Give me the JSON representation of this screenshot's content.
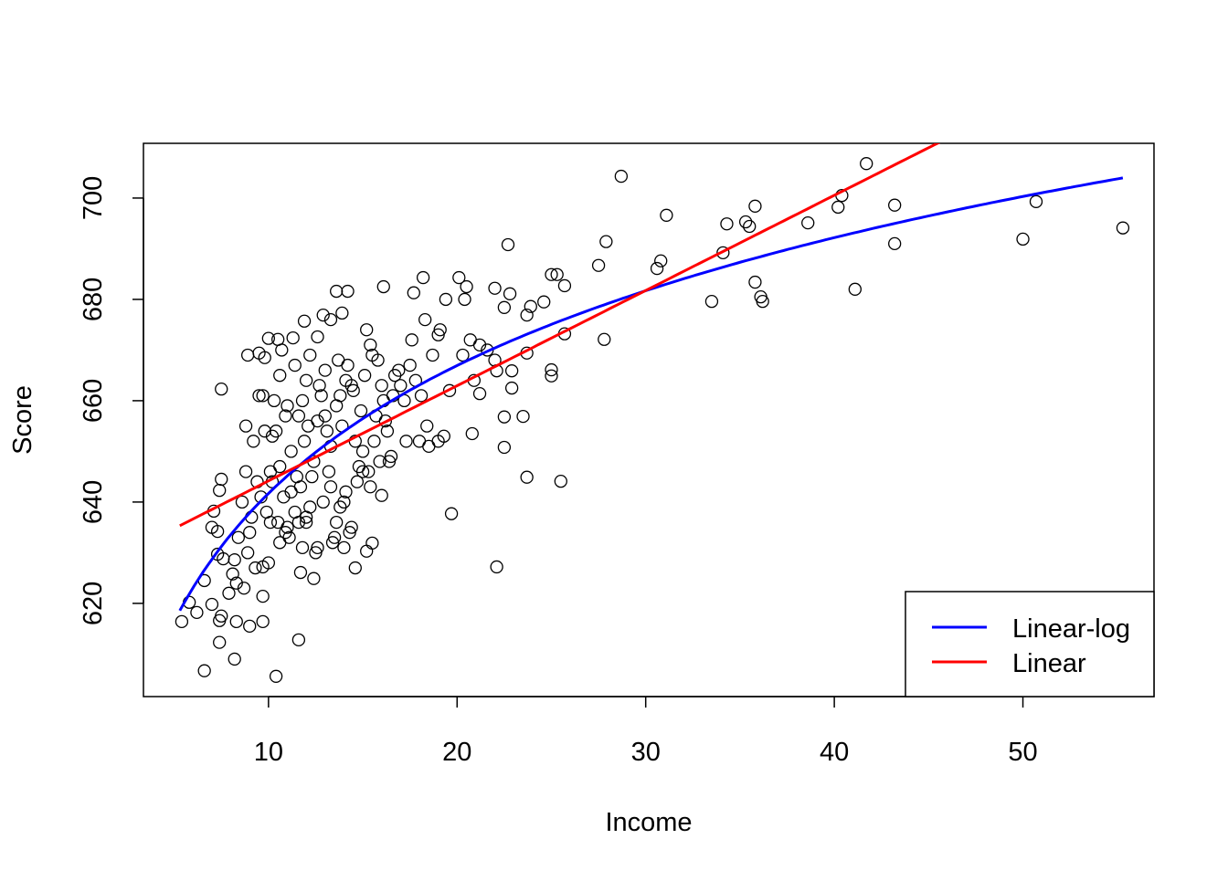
{
  "chart_data": {
    "type": "scatter",
    "title": "",
    "xlabel": "Income",
    "ylabel": "Score",
    "xlim": [
      3.37,
      56.95
    ],
    "ylim": [
      601.6,
      710.8
    ],
    "x_ticks": [
      10,
      20,
      30,
      40,
      50
    ],
    "y_ticks": [
      620,
      640,
      660,
      680,
      700
    ],
    "grid": false,
    "legend": {
      "placement": "bottom-right",
      "entries": [
        {
          "label": "Linear-log",
          "color": "#0000ff"
        },
        {
          "label": "Linear",
          "color": "#ff0000"
        }
      ]
    },
    "lines": [
      {
        "name": "Linear-log",
        "color": "#0000ff",
        "model": "log",
        "intercept": 557.83,
        "slope": 36.42,
        "x_range": [
          5.3,
          55.3
        ]
      },
      {
        "name": "Linear",
        "color": "#ff0000",
        "model": "linear",
        "intercept": 625.38,
        "slope": 1.879,
        "x_range": [
          5.3,
          55.3
        ]
      }
    ],
    "points": [
      [
        28.7,
        704.3
      ],
      [
        41.7,
        706.8
      ],
      [
        40.4,
        700.5
      ],
      [
        40.2,
        698.2
      ],
      [
        43.2,
        698.6
      ],
      [
        43.2,
        691.0
      ],
      [
        50.7,
        699.3
      ],
      [
        50.0,
        691.9
      ],
      [
        55.3,
        694.1
      ],
      [
        41.1,
        682.0
      ],
      [
        38.6,
        695.1
      ],
      [
        35.8,
        698.4
      ],
      [
        35.3,
        695.3
      ],
      [
        35.5,
        694.4
      ],
      [
        34.3,
        694.9
      ],
      [
        34.1,
        689.2
      ],
      [
        35.8,
        683.4
      ],
      [
        36.1,
        680.5
      ],
      [
        36.2,
        679.6
      ],
      [
        33.5,
        679.6
      ],
      [
        31.1,
        696.6
      ],
      [
        30.8,
        687.6
      ],
      [
        30.6,
        686.1
      ],
      [
        27.9,
        691.4
      ],
      [
        27.5,
        686.7
      ],
      [
        27.8,
        672.1
      ],
      [
        25.7,
        682.7
      ],
      [
        25.3,
        684.9
      ],
      [
        25.0,
        684.9
      ],
      [
        24.6,
        679.5
      ],
      [
        23.9,
        678.6
      ],
      [
        23.7,
        676.9
      ],
      [
        22.7,
        690.8
      ],
      [
        22.8,
        681.1
      ],
      [
        22.0,
        682.2
      ],
      [
        22.5,
        678.4
      ],
      [
        25.7,
        673.2
      ],
      [
        23.7,
        669.4
      ],
      [
        25.0,
        666.1
      ],
      [
        25.0,
        664.9
      ],
      [
        22.9,
        665.9
      ],
      [
        22.1,
        665.9
      ],
      [
        22.9,
        662.5
      ],
      [
        23.5,
        656.9
      ],
      [
        22.5,
        656.8
      ],
      [
        22.5,
        650.8
      ],
      [
        23.7,
        644.9
      ],
      [
        25.5,
        644.1
      ],
      [
        22.1,
        627.2
      ],
      [
        19.7,
        637.7
      ],
      [
        20.8,
        653.5
      ],
      [
        21.2,
        661.4
      ],
      [
        20.1,
        684.3
      ],
      [
        20.5,
        682.5
      ],
      [
        20.4,
        680.0
      ],
      [
        19.4,
        680.0
      ],
      [
        18.2,
        684.3
      ],
      [
        17.7,
        681.3
      ],
      [
        16.1,
        682.5
      ],
      [
        13.6,
        681.6
      ],
      [
        14.2,
        681.6
      ],
      [
        12.9,
        676.9
      ],
      [
        13.3,
        676.0
      ],
      [
        13.9,
        677.3
      ],
      [
        11.9,
        675.7
      ],
      [
        10.5,
        672.1
      ],
      [
        10.0,
        672.3
      ],
      [
        11.3,
        672.4
      ],
      [
        12.6,
        672.6
      ],
      [
        8.9,
        669.0
      ],
      [
        9.5,
        669.4
      ],
      [
        9.8,
        668.5
      ],
      [
        7.5,
        662.3
      ],
      [
        8.8,
        655.0
      ],
      [
        7.5,
        644.5
      ],
      [
        7.4,
        642.3
      ],
      [
        7.1,
        638.2
      ],
      [
        7.0,
        635.0
      ],
      [
        7.3,
        634.2
      ],
      [
        7.3,
        629.7
      ],
      [
        7.6,
        628.8
      ],
      [
        8.2,
        628.6
      ],
      [
        8.1,
        625.8
      ],
      [
        6.6,
        624.5
      ],
      [
        5.8,
        620.2
      ],
      [
        5.4,
        616.4
      ],
      [
        6.2,
        618.2
      ],
      [
        7.0,
        619.8
      ],
      [
        7.4,
        616.6
      ],
      [
        7.5,
        617.5
      ],
      [
        7.4,
        612.3
      ],
      [
        6.6,
        606.7
      ],
      [
        8.2,
        609.0
      ],
      [
        9.0,
        615.5
      ],
      [
        8.3,
        616.4
      ],
      [
        9.7,
        616.4
      ],
      [
        9.7,
        621.4
      ],
      [
        9.7,
        627.2
      ],
      [
        10.4,
        605.6
      ],
      [
        11.6,
        612.8
      ],
      [
        11.7,
        626.1
      ],
      [
        12.4,
        624.9
      ],
      [
        14.6,
        627.0
      ],
      [
        15.2,
        630.3
      ],
      [
        15.5,
        631.9
      ],
      [
        16.0,
        641.3
      ],
      [
        9.2,
        652
      ],
      [
        9.5,
        661
      ],
      [
        9.8,
        654
      ],
      [
        10.1,
        646
      ],
      [
        10.3,
        660
      ],
      [
        10.6,
        665
      ],
      [
        10.9,
        657
      ],
      [
        11.2,
        650
      ],
      [
        11.5,
        645
      ],
      [
        11.8,
        660
      ],
      [
        12.1,
        655
      ],
      [
        12.4,
        648
      ],
      [
        12.7,
        663
      ],
      [
        13.0,
        657
      ],
      [
        13.3,
        651
      ],
      [
        13.6,
        659
      ],
      [
        13.9,
        655
      ],
      [
        14.2,
        667
      ],
      [
        14.5,
        662
      ],
      [
        14.8,
        647
      ],
      [
        15.1,
        665
      ],
      [
        15.4,
        671
      ],
      [
        15.7,
        657
      ],
      [
        16.0,
        663
      ],
      [
        16.3,
        654
      ],
      [
        16.6,
        661
      ],
      [
        16.9,
        666
      ],
      [
        17.2,
        660
      ],
      [
        17.5,
        667
      ],
      [
        17.8,
        664
      ],
      [
        18.1,
        661
      ],
      [
        18.4,
        655
      ],
      [
        18.7,
        669
      ],
      [
        19.0,
        673
      ],
      [
        19.3,
        653
      ],
      [
        9.6,
        641
      ],
      [
        9.9,
        638
      ],
      [
        10.2,
        644
      ],
      [
        10.5,
        636
      ],
      [
        10.8,
        641
      ],
      [
        11.1,
        633
      ],
      [
        11.4,
        638
      ],
      [
        11.7,
        643
      ],
      [
        12.0,
        636
      ],
      [
        12.3,
        645
      ],
      [
        12.6,
        631
      ],
      [
        12.9,
        640
      ],
      [
        13.2,
        646
      ],
      [
        13.5,
        633
      ],
      [
        13.8,
        639
      ],
      [
        14.1,
        642
      ],
      [
        14.4,
        635
      ],
      [
        14.7,
        644
      ],
      [
        15.0,
        650
      ],
      [
        15.3,
        646
      ],
      [
        15.6,
        652
      ],
      [
        15.9,
        648
      ],
      [
        16.2,
        656
      ],
      [
        16.5,
        649
      ],
      [
        10.0,
        628
      ],
      [
        10.6,
        632
      ],
      [
        11.0,
        635
      ],
      [
        11.8,
        631
      ],
      [
        12.5,
        630
      ],
      [
        13.4,
        632
      ],
      [
        14.0,
        631
      ],
      [
        14.3,
        634
      ],
      [
        8.6,
        640
      ],
      [
        8.8,
        646
      ],
      [
        9.0,
        634
      ],
      [
        9.3,
        627
      ],
      [
        8.4,
        633
      ],
      [
        8.7,
        623
      ],
      [
        7.9,
        622
      ],
      [
        8.3,
        624
      ],
      [
        8.9,
        630
      ],
      [
        9.1,
        637
      ],
      [
        10.7,
        670
      ],
      [
        11.4,
        667
      ],
      [
        12.2,
        669
      ],
      [
        13.0,
        666
      ],
      [
        13.7,
        668
      ],
      [
        14.4,
        663
      ],
      [
        15.2,
        674
      ],
      [
        15.8,
        668
      ],
      [
        16.7,
        665
      ],
      [
        17.6,
        672
      ],
      [
        18.3,
        676
      ],
      [
        19.1,
        674
      ],
      [
        19.6,
        662
      ],
      [
        20.3,
        669
      ],
      [
        20.7,
        672
      ],
      [
        21.2,
        671
      ],
      [
        21.6,
        670
      ],
      [
        22.0,
        668
      ],
      [
        20.9,
        664
      ],
      [
        18.0,
        652
      ],
      [
        17.3,
        652
      ],
      [
        18.5,
        651
      ],
      [
        19.0,
        652
      ],
      [
        16.4,
        648
      ],
      [
        15.4,
        643
      ],
      [
        14.6,
        652
      ],
      [
        13.1,
        654
      ],
      [
        12.8,
        661
      ],
      [
        11.6,
        657
      ],
      [
        10.4,
        654
      ],
      [
        9.7,
        661
      ],
      [
        11.9,
        652
      ],
      [
        12.0,
        664
      ],
      [
        10.2,
        653
      ],
      [
        14.9,
        658
      ],
      [
        16.1,
        660
      ],
      [
        17.0,
        663
      ],
      [
        13.8,
        661
      ],
      [
        14.1,
        664
      ],
      [
        15.5,
        669
      ],
      [
        10.6,
        647
      ],
      [
        11.2,
        642
      ],
      [
        12.6,
        656
      ],
      [
        13.3,
        643
      ],
      [
        14.0,
        640
      ],
      [
        15.0,
        646
      ],
      [
        11.0,
        659
      ],
      [
        12.2,
        639
      ],
      [
        13.6,
        636
      ],
      [
        9.4,
        644
      ],
      [
        10.1,
        636
      ],
      [
        10.9,
        634
      ],
      [
        11.6,
        636
      ],
      [
        12.0,
        637
      ]
    ]
  }
}
